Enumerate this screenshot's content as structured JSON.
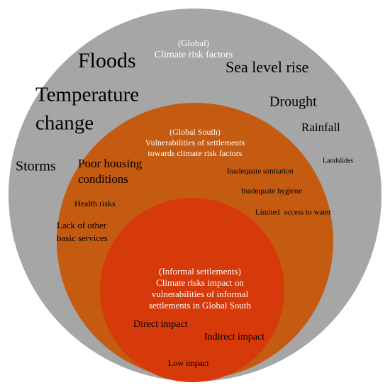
{
  "global": {
    "heading": [
      "(Global)",
      "Climate risk factors"
    ],
    "factors": {
      "floods": "Floods",
      "sea_level_rise": "Sea level rise",
      "temperature_change": [
        "Temperature",
        "change"
      ],
      "drought": "Drought",
      "rainfall": "Rainfall",
      "storms": "Storms",
      "landslides": "Landslides"
    }
  },
  "global_south": {
    "heading": [
      "(Global South)",
      "Vulnerabilities of settlements",
      "towards climate risk factors"
    ],
    "vulnerabilities": {
      "poor_housing": [
        "Poor housing",
        "conditions"
      ],
      "sanitation": "Inadequate sanitation",
      "hygiene": "Inadequate hygiene",
      "water": "Limited  access to water",
      "health": "Health risks",
      "services": [
        "Lack of other",
        "basic services"
      ]
    }
  },
  "informal": {
    "heading": [
      "(Informal settlements)",
      "Climate risks impact on",
      "vulnerabilities of informal",
      "settlements in Global South"
    ],
    "impacts": {
      "direct": "Direct impact",
      "indirect": "Indirect impact",
      "low": "Low impact"
    }
  }
}
